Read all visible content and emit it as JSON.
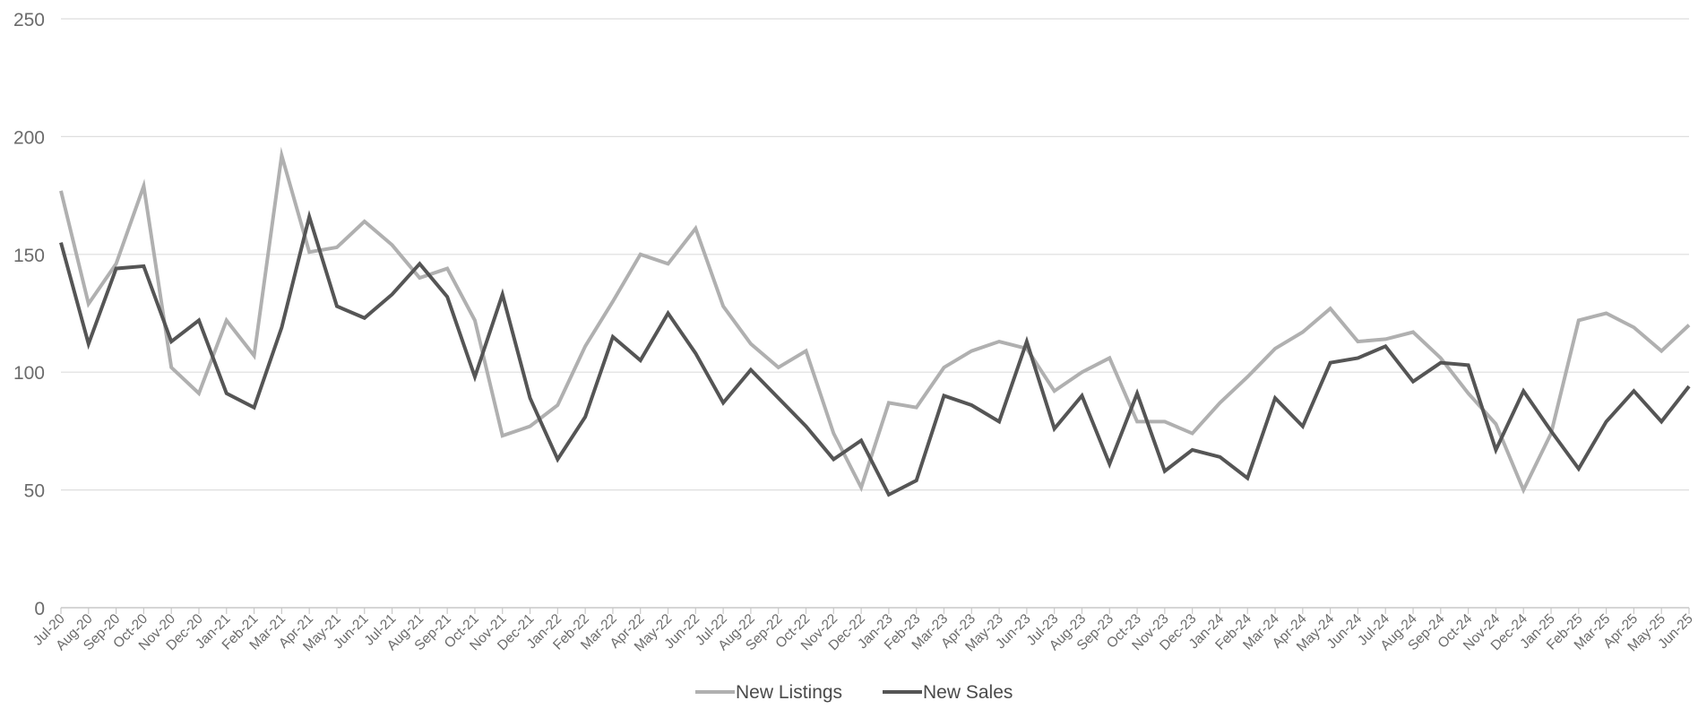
{
  "chart_data": {
    "type": "line",
    "title": "",
    "xlabel": "",
    "ylabel": "",
    "ylim": [
      0,
      250
    ],
    "yticks": [
      0,
      50,
      100,
      150,
      200,
      250
    ],
    "grid": true,
    "legend_position": "bottom-center",
    "categories": [
      "Jul-20",
      "Aug-20",
      "Sep-20",
      "Oct-20",
      "Nov-20",
      "Dec-20",
      "Jan-21",
      "Feb-21",
      "Mar-21",
      "Apr-21",
      "May-21",
      "Jun-21",
      "Jul-21",
      "Aug-21",
      "Sep-21",
      "Oct-21",
      "Nov-21",
      "Dec-21",
      "Jan-22",
      "Feb-22",
      "Mar-22",
      "Apr-22",
      "May-22",
      "Jun-22",
      "Jul-22",
      "Aug-22",
      "Sep-22",
      "Oct-22",
      "Nov-22",
      "Dec-22",
      "Jan-23",
      "Feb-23",
      "Mar-23",
      "Apr-23",
      "May-23",
      "Jun-23",
      "Jul-23",
      "Aug-23",
      "Sep-23",
      "Oct-23",
      "Nov-23",
      "Dec-23",
      "Jan-24",
      "Feb-24",
      "Mar-24",
      "Apr-24",
      "May-24",
      "Jun-24",
      "Jul-24",
      "Aug-24",
      "Sep-24",
      "Oct-24",
      "Nov-24",
      "Dec-24",
      "Jan-25",
      "Feb-25",
      "Mar-25",
      "Apr-25",
      "May-25",
      "Jun-25"
    ],
    "series": [
      {
        "name": "New Listings",
        "color": "#b0b0b0",
        "values": [
          177,
          129,
          146,
          179,
          102,
          91,
          122,
          107,
          192,
          151,
          153,
          164,
          154,
          140,
          144,
          122,
          73,
          77,
          86,
          111,
          130,
          150,
          146,
          161,
          128,
          112,
          102,
          109,
          74,
          51,
          87,
          85,
          102,
          109,
          113,
          110,
          92,
          100,
          106,
          79,
          79,
          74,
          87,
          98,
          110,
          117,
          127,
          113,
          114,
          117,
          106,
          91,
          78,
          50,
          74,
          122,
          125,
          119,
          109,
          120
        ]
      },
      {
        "name": "New Sales",
        "color": "#555555",
        "values": [
          155,
          112,
          144,
          145,
          113,
          122,
          91,
          85,
          119,
          166,
          128,
          123,
          133,
          146,
          132,
          98,
          133,
          89,
          63,
          81,
          115,
          105,
          125,
          108,
          87,
          101,
          89,
          77,
          63,
          71,
          48,
          54,
          90,
          86,
          79,
          113,
          76,
          90,
          61,
          91,
          58,
          67,
          64,
          55,
          89,
          77,
          104,
          106,
          111,
          96,
          104,
          103,
          67,
          92,
          75,
          59,
          79,
          92,
          79,
          94
        ]
      }
    ]
  }
}
